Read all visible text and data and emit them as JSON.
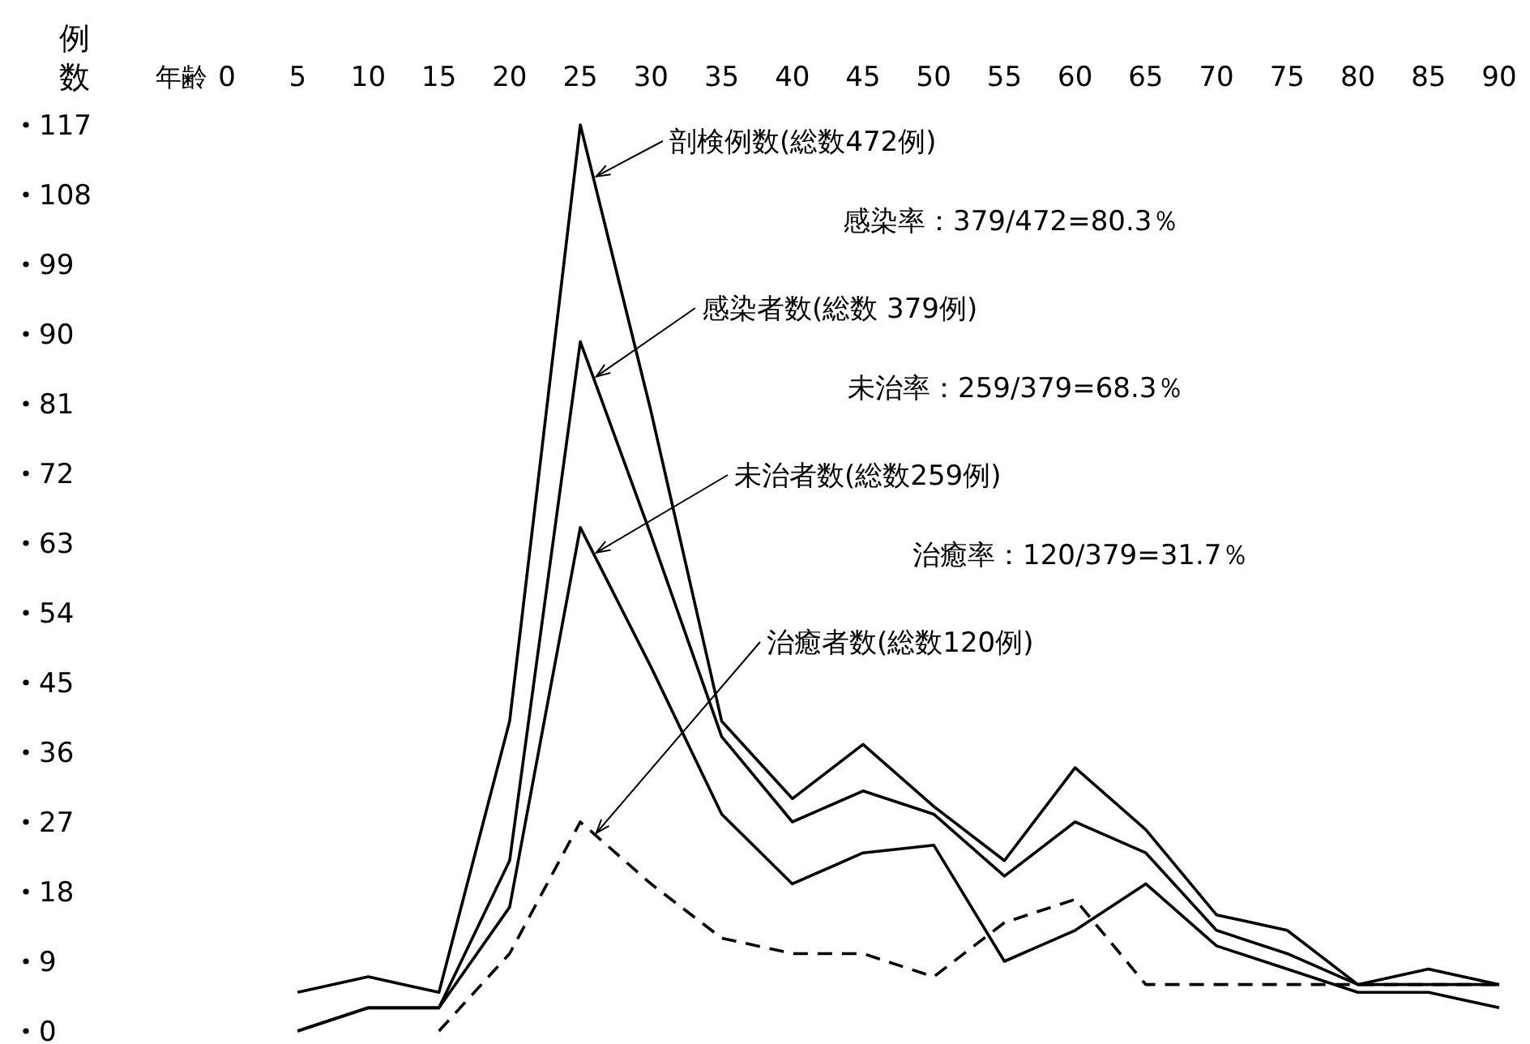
{
  "chart_data": {
    "type": "line",
    "xlabel": "年齢",
    "ylabel": "例数",
    "x": [
      5,
      10,
      15,
      20,
      25,
      30,
      35,
      40,
      45,
      50,
      55,
      60,
      65,
      70,
      75,
      80,
      85,
      90
    ],
    "xlim": [
      0,
      90
    ],
    "xticks": [
      0,
      5,
      10,
      15,
      20,
      25,
      30,
      35,
      40,
      45,
      50,
      55,
      60,
      65,
      70,
      75,
      80,
      85,
      90
    ],
    "ylim": [
      0,
      117
    ],
    "yticks": [
      0,
      9,
      18,
      27,
      36,
      45,
      54,
      63,
      72,
      81,
      90,
      99,
      108,
      117
    ],
    "grid": false,
    "marker": "none",
    "series": [
      {
        "name": "剖検例数(総数472例)",
        "color": "#000000",
        "line_style": "solid",
        "values": [
          5,
          7,
          5,
          40,
          117,
          80,
          40,
          30,
          37,
          29,
          22,
          34,
          26,
          15,
          13,
          6,
          8,
          6
        ]
      },
      {
        "name": "感染者数(総数 379例)",
        "color": "#000000",
        "line_style": "solid",
        "values": [
          0,
          3,
          3,
          22,
          89,
          64,
          38,
          27,
          31,
          28,
          20,
          27,
          23,
          13,
          10,
          6,
          6,
          6
        ]
      },
      {
        "name": "未治者数(総数259例)",
        "color": "#000000",
        "line_style": "solid",
        "values": [
          0,
          3,
          3,
          16,
          65,
          47,
          28,
          19,
          23,
          24,
          9,
          13,
          19,
          11,
          8,
          5,
          5,
          3
        ]
      },
      {
        "name": "治癒者数(総数120例)",
        "color": "#000000",
        "line_style": "dashed",
        "x": [
          15,
          20,
          25,
          30,
          35,
          40,
          45,
          50,
          55,
          60,
          65,
          70,
          75,
          80,
          85,
          90
        ],
        "values": [
          0,
          10,
          27,
          19,
          12,
          10,
          10,
          7,
          14,
          17,
          6,
          6,
          6,
          6,
          6,
          6
        ]
      }
    ],
    "annotations": [
      "感染率：379/472=80.3％",
      "未治率：259/379=68.3％",
      "治癒率：120/379=31.7％"
    ]
  }
}
